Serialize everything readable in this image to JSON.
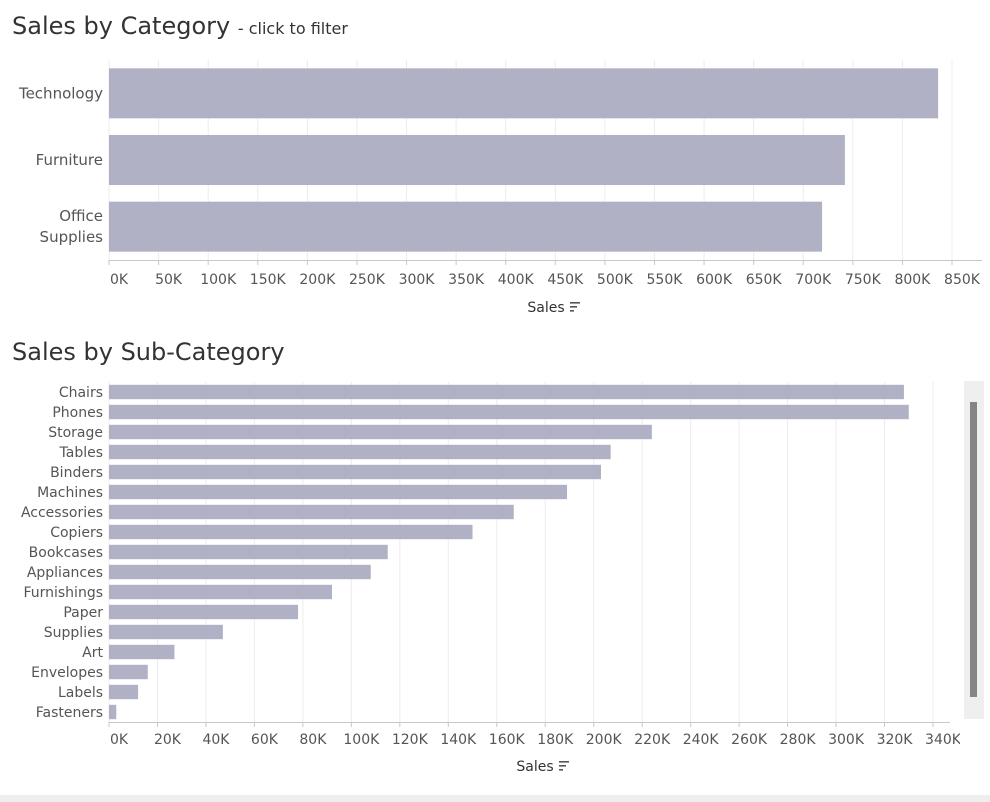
{
  "colors": {
    "bar": "#b0b1c4",
    "grid": "#ececec",
    "axis": "#c8c8c8",
    "text": "#555555"
  },
  "category_chart": {
    "title": "Sales by Category",
    "subtitle": "- click to filter",
    "axis_title": "Sales",
    "sort_icon": "sort-descending-icon"
  },
  "subcategory_chart": {
    "title": "Sales by Sub-Category",
    "axis_title": "Sales",
    "sort_icon": "sort-descending-icon"
  },
  "chart_data": [
    {
      "type": "bar",
      "orientation": "horizontal",
      "title": "Sales by Category",
      "subtitle": "- click to filter",
      "xlabel": "Sales",
      "ylabel": "",
      "categories": [
        "Technology",
        "Furniture",
        "Office Supplies"
      ],
      "values": [
        836000,
        742000,
        719000
      ],
      "xlim": [
        0,
        850000
      ],
      "xticks": [
        0,
        50000,
        100000,
        150000,
        200000,
        250000,
        300000,
        350000,
        400000,
        450000,
        500000,
        550000,
        600000,
        650000,
        700000,
        750000,
        800000,
        850000
      ],
      "xtick_labels": [
        "0K",
        "50K",
        "100K",
        "150K",
        "200K",
        "250K",
        "300K",
        "350K",
        "400K",
        "450K",
        "500K",
        "550K",
        "600K",
        "650K",
        "700K",
        "750K",
        "800K",
        "850K"
      ],
      "grid": true,
      "legend": "none"
    },
    {
      "type": "bar",
      "orientation": "horizontal",
      "title": "Sales by Sub-Category",
      "xlabel": "Sales",
      "ylabel": "",
      "categories": [
        "Chairs",
        "Phones",
        "Storage",
        "Tables",
        "Binders",
        "Machines",
        "Accessories",
        "Copiers",
        "Bookcases",
        "Appliances",
        "Furnishings",
        "Paper",
        "Supplies",
        "Art",
        "Envelopes",
        "Labels",
        "Fasteners"
      ],
      "values": [
        328000,
        330000,
        224000,
        207000,
        203000,
        189000,
        167000,
        150000,
        115000,
        108000,
        92000,
        78000,
        47000,
        27000,
        16000,
        12000,
        3000
      ],
      "xlim": [
        0,
        340000
      ],
      "xticks": [
        0,
        20000,
        40000,
        60000,
        80000,
        100000,
        120000,
        140000,
        160000,
        180000,
        200000,
        220000,
        240000,
        260000,
        280000,
        300000,
        320000,
        340000
      ],
      "xtick_labels": [
        "0K",
        "20K",
        "40K",
        "60K",
        "80K",
        "100K",
        "120K",
        "140K",
        "160K",
        "180K",
        "200K",
        "220K",
        "240K",
        "260K",
        "280K",
        "300K",
        "320K",
        "340K"
      ],
      "grid": true,
      "legend": "none"
    }
  ]
}
